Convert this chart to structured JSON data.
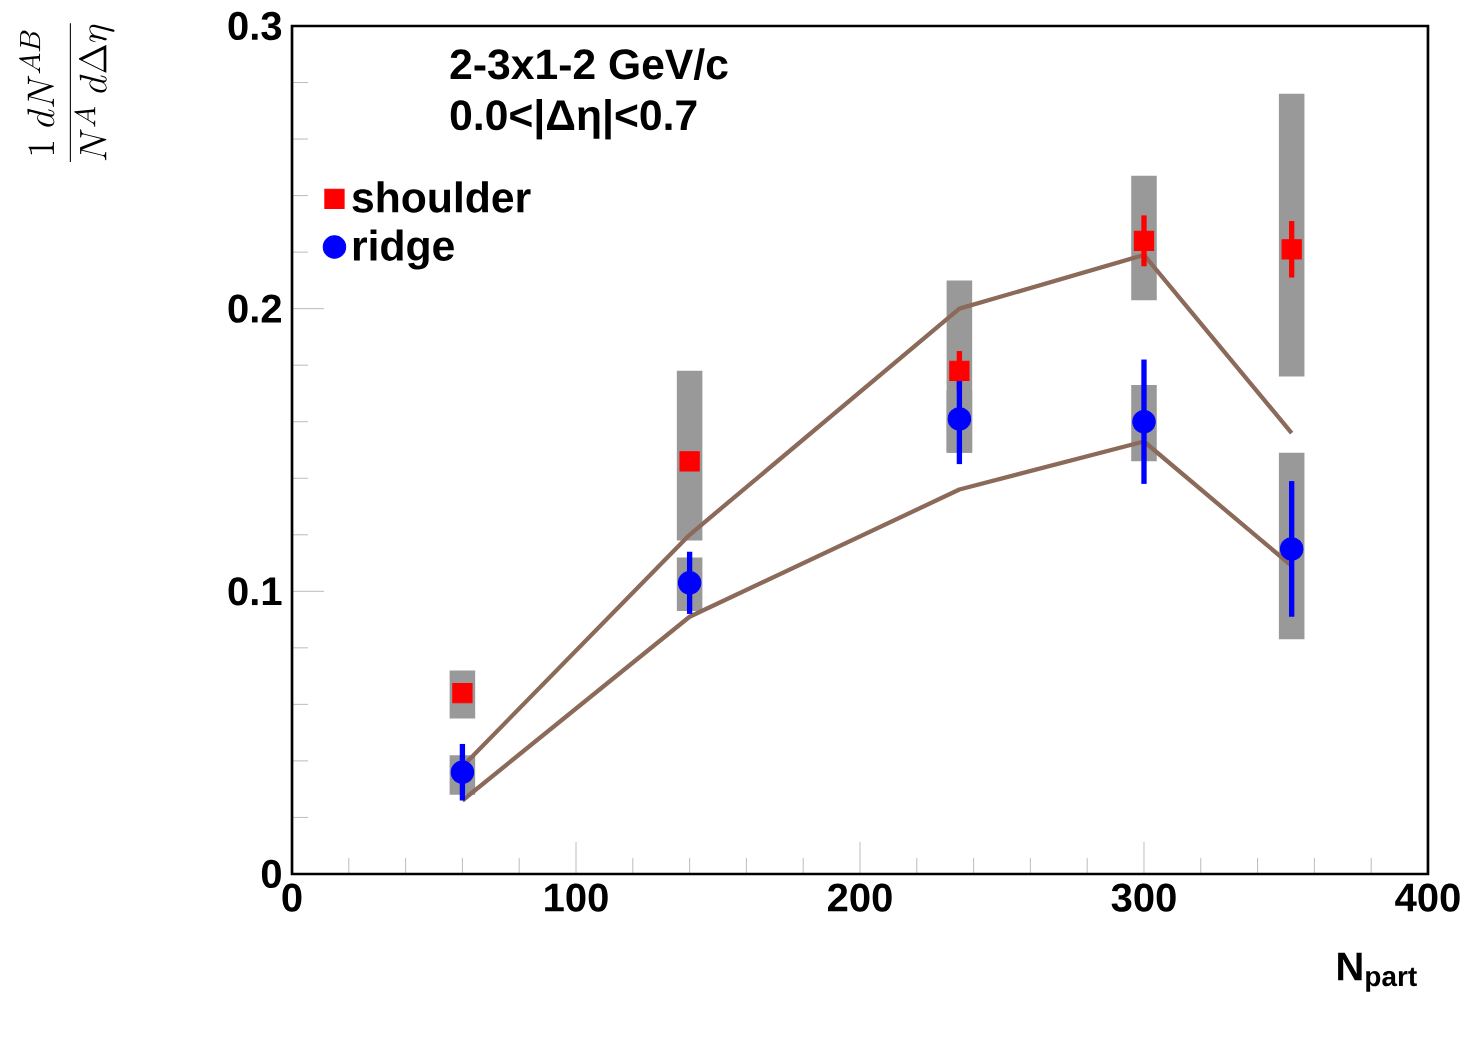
{
  "chart_data": {
    "type": "scatter",
    "xlabel": "N$_{part}$",
    "ylabel": "\\frac{1\\;dN^{AB}}{N^{A}\\;d\\Delta\\eta}",
    "annotations": [
      "2-3x1-2 GeV/c",
      "0.0<|Δη|<0.7"
    ],
    "xlim": [
      0,
      400
    ],
    "ylim": [
      0,
      0.3
    ],
    "xticks": [
      0,
      100,
      200,
      300,
      400
    ],
    "yticks": [
      0,
      0.1,
      0.2,
      0.3
    ],
    "legend": "top left",
    "grid": false,
    "series": [
      {
        "type": "bar",
        "color": "#999999",
        "x": [
          60,
          140,
          235,
          300,
          352
        ],
        "base": [
          0.055,
          0.118,
          0.149,
          0.203,
          0.176
        ],
        "values": [
          0.017,
          0.06,
          0.061,
          0.044,
          0.1
        ]
      },
      {
        "type": "bar",
        "color": "#999999",
        "x": [
          60,
          140,
          235,
          300,
          352
        ],
        "base": [
          0.028,
          0.093,
          0.149,
          0.146,
          0.083
        ],
        "values": [
          0.014,
          0.019,
          0.022,
          0.027,
          0.066
        ]
      },
      {
        "type": "line",
        "color": "#8b6a5a",
        "marker": "none",
        "x": [
          60,
          140,
          235,
          300,
          352
        ],
        "values": [
          0.038,
          0.12,
          0.2,
          0.219,
          0.156
        ]
      },
      {
        "type": "line",
        "color": "#8b6a5a",
        "marker": "none",
        "x": [
          60,
          140,
          235,
          300,
          352
        ],
        "values": [
          0.026,
          0.091,
          0.136,
          0.153,
          0.109
        ]
      },
      {
        "name": "shoulder",
        "color": "#ff0000",
        "marker": "square",
        "x": [
          60,
          140,
          235,
          300,
          352
        ],
        "values": [
          0.064,
          0.146,
          0.178,
          0.224,
          0.221
        ],
        "errors": [
          null,
          null,
          0.007,
          0.009,
          0.01
        ]
      },
      {
        "name": "ridge",
        "color": "#0000ff",
        "marker": "circle",
        "x": [
          60,
          140,
          235,
          300,
          352
        ],
        "values": [
          0.036,
          0.103,
          0.161,
          0.16,
          0.115
        ],
        "errors": [
          0.01,
          0.011,
          0.016,
          0.022,
          0.024
        ]
      }
    ]
  }
}
